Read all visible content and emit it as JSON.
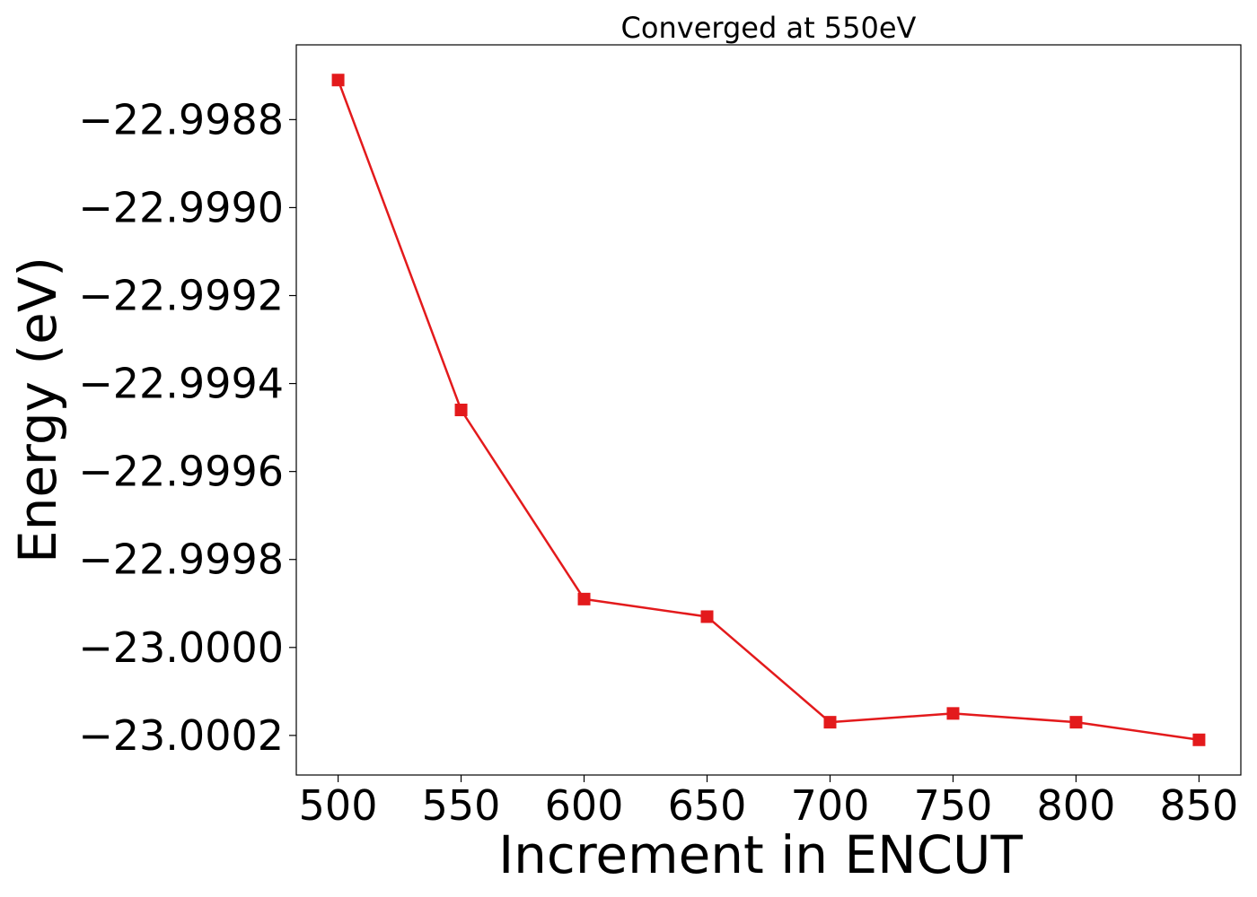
{
  "chart_data": {
    "type": "line",
    "title": "Converged at 550eV",
    "xlabel": "Increment in ENCUT",
    "ylabel": "Energy (eV)",
    "x": [
      500,
      550,
      600,
      650,
      700,
      750,
      800,
      850
    ],
    "series": [
      {
        "values": [
          -22.99871,
          -22.99946,
          -22.99989,
          -22.99993,
          -23.00017,
          -23.00015,
          -23.00017,
          -23.00021
        ],
        "color": "#e31a1c",
        "marker": "square"
      }
    ],
    "xlim": [
      483,
      867
    ],
    "ylim": [
      -23.00029,
      -22.99863
    ],
    "xticks": [
      500,
      550,
      600,
      650,
      700,
      750,
      800,
      850
    ],
    "xtick_labels": [
      "500",
      "550",
      "600",
      "650",
      "700",
      "750",
      "800",
      "850"
    ],
    "yticks": [
      -22.9988,
      -22.999,
      -22.9992,
      -22.9994,
      -22.9996,
      -22.9998,
      -23.0,
      -23.0002
    ],
    "ytick_labels": [
      "−22.9988",
      "−22.9990",
      "−22.9992",
      "−22.9994",
      "−22.9996",
      "−22.9998",
      "−23.0000",
      "−23.0002"
    ],
    "grid": false,
    "legend": false
  }
}
